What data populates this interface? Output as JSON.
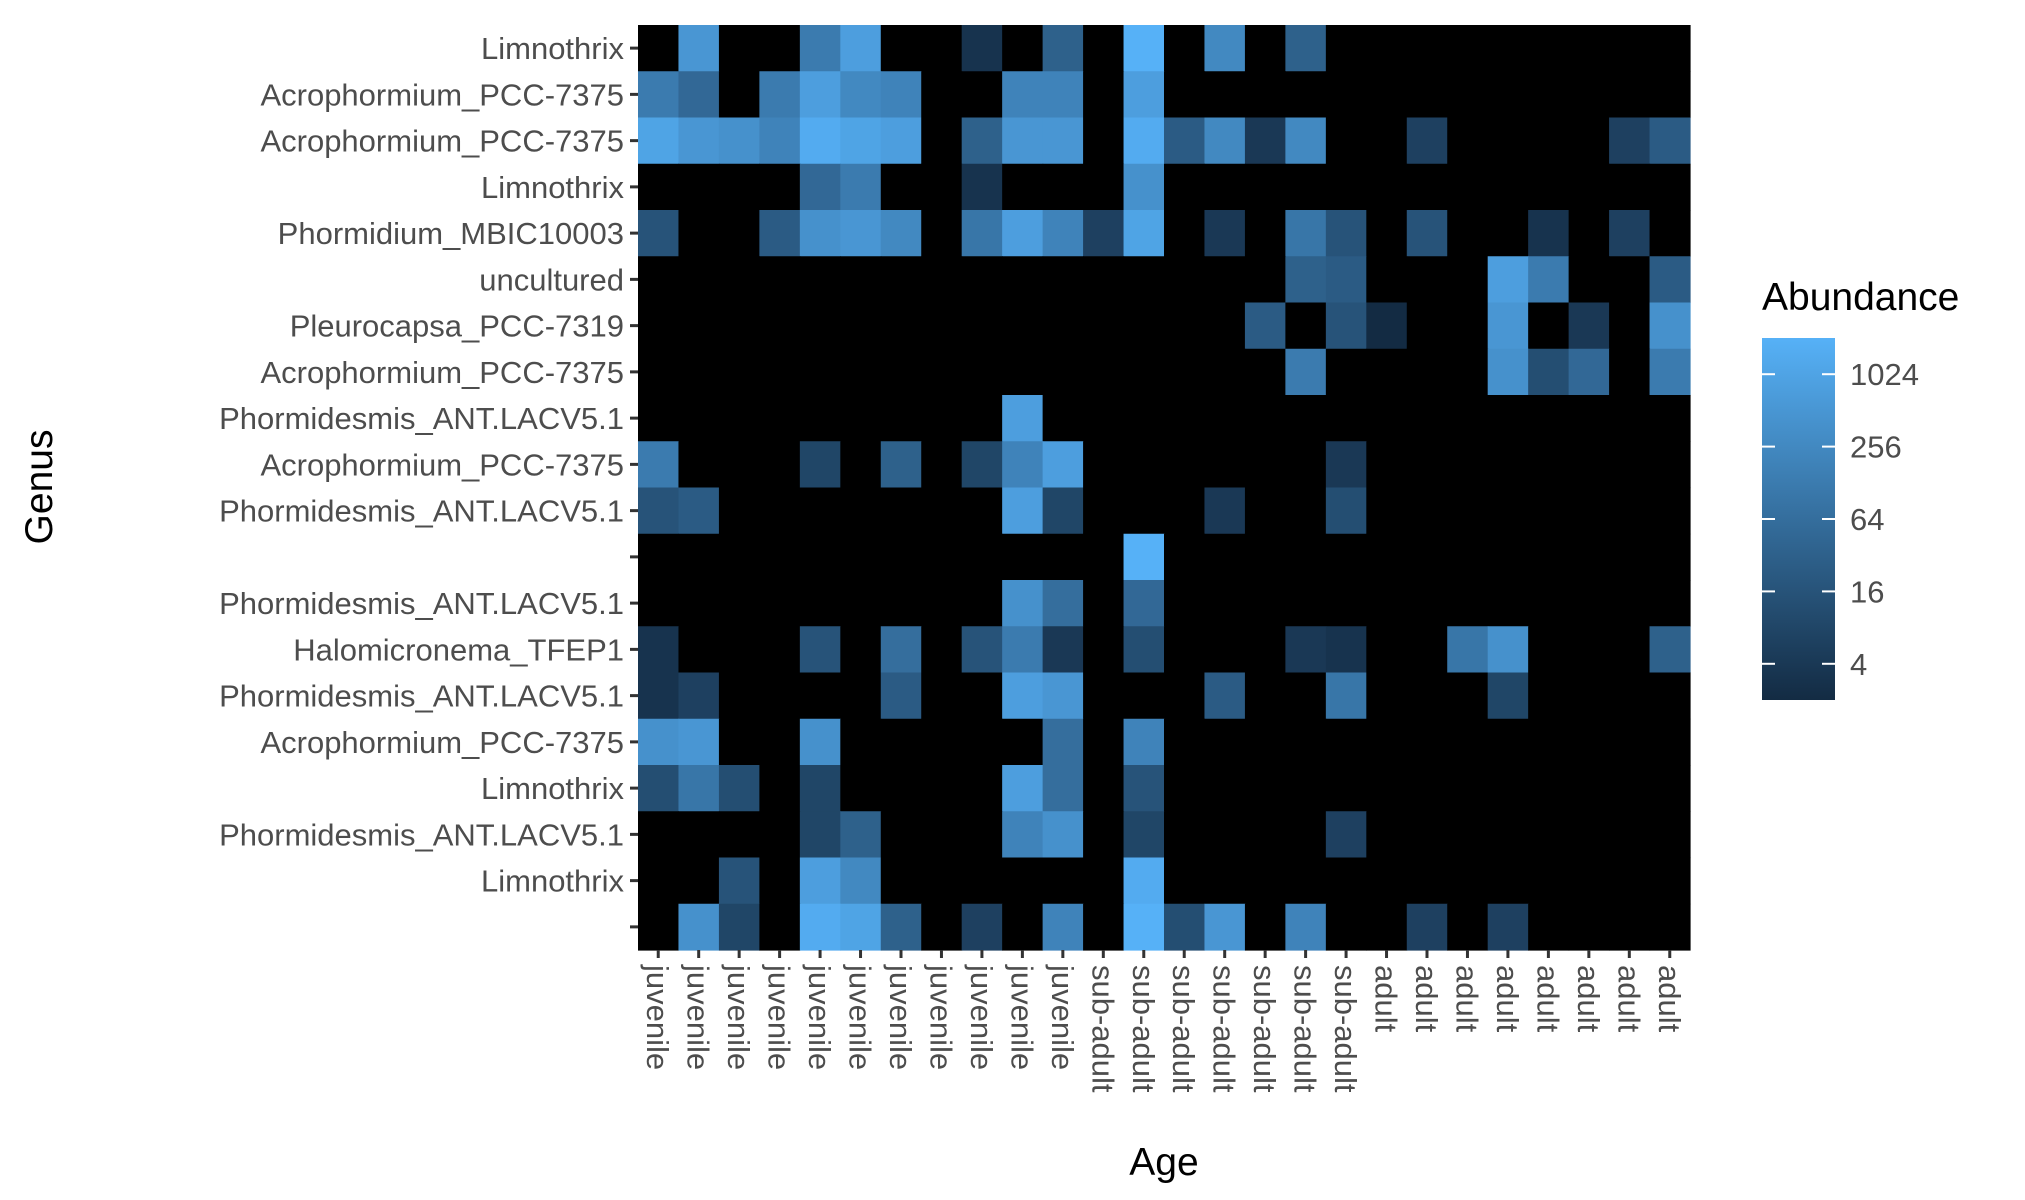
{
  "chart_data": {
    "type": "heatmap",
    "xlabel": "Age",
    "ylabel": "Genus",
    "legend": {
      "title": "Abundance",
      "placement": "right",
      "scale": "log2",
      "ticks": [
        4,
        16,
        64,
        256,
        1024
      ],
      "tick_labels": [
        "4",
        "16",
        "64",
        "256",
        "1024"
      ],
      "range": [
        2,
        2048
      ],
      "color_low": "#132B43",
      "color_high": "#56B1F7",
      "zero_color": "#000000"
    },
    "x_categories": [
      "juvenile",
      "juvenile",
      "juvenile",
      "juvenile",
      "juvenile",
      "juvenile",
      "juvenile",
      "juvenile",
      "juvenile",
      "juvenile",
      "juvenile",
      "sub-adult",
      "sub-adult",
      "sub-adult",
      "sub-adult",
      "sub-adult",
      "sub-adult",
      "sub-adult",
      "adult",
      "adult",
      "adult",
      "adult",
      "adult",
      "adult",
      "adult",
      "adult"
    ],
    "y_categories": [
      "Limnothrix",
      "Acrophormium_PCC-7375",
      "Acrophormium_PCC-7375",
      "Limnothrix",
      "Phormidium_MBIC10003",
      "uncultured",
      "Pleurocapsa_PCC-7319",
      "Acrophormium_PCC-7375",
      "Phormidesmis_ANT.LACV5.1",
      "Acrophormium_PCC-7375",
      "Phormidesmis_ANT.LACV5.1",
      "",
      "Phormidesmis_ANT.LACV5.1",
      "Halomicronema_TFEP1",
      "Phormidesmis_ANT.LACV5.1",
      "Acrophormium_PCC-7375",
      "Limnothrix",
      "Phormidesmis_ANT.LACV5.1",
      "Limnothrix",
      ""
    ],
    "values": [
      [
        0,
        512,
        0,
        0,
        128,
        768,
        0,
        0,
        3,
        0,
        32,
        0,
        2048,
        0,
        256,
        0,
        32,
        0,
        0,
        0,
        0,
        0,
        0,
        0,
        0,
        0
      ],
      [
        128,
        48,
        0,
        128,
        768,
        256,
        192,
        0,
        0,
        192,
        192,
        0,
        768,
        0,
        0,
        0,
        0,
        0,
        0,
        0,
        0,
        0,
        0,
        0,
        0,
        0
      ],
      [
        1024,
        512,
        384,
        192,
        1536,
        1024,
        768,
        0,
        32,
        512,
        512,
        0,
        1536,
        24,
        256,
        4,
        256,
        0,
        0,
        6,
        0,
        0,
        0,
        0,
        6,
        24
      ],
      [
        0,
        0,
        0,
        0,
        48,
        128,
        0,
        0,
        3,
        0,
        0,
        0,
        384,
        0,
        0,
        0,
        0,
        0,
        0,
        0,
        0,
        0,
        0,
        0,
        0,
        0
      ],
      [
        16,
        0,
        0,
        24,
        384,
        512,
        256,
        0,
        96,
        768,
        192,
        6,
        1024,
        0,
        4,
        0,
        96,
        16,
        0,
        16,
        0,
        0,
        3,
        0,
        6,
        0
      ],
      [
        0,
        0,
        0,
        0,
        0,
        0,
        0,
        0,
        0,
        0,
        0,
        0,
        0,
        0,
        0,
        0,
        32,
        24,
        0,
        0,
        0,
        768,
        128,
        0,
        0,
        24
      ],
      [
        0,
        0,
        0,
        0,
        0,
        0,
        0,
        0,
        0,
        0,
        0,
        0,
        0,
        0,
        0,
        24,
        0,
        16,
        2,
        0,
        0,
        512,
        0,
        4,
        0,
        384
      ],
      [
        0,
        0,
        0,
        0,
        0,
        0,
        0,
        0,
        0,
        0,
        0,
        0,
        0,
        0,
        0,
        0,
        128,
        0,
        0,
        0,
        0,
        384,
        12,
        48,
        0,
        128
      ],
      [
        0,
        0,
        0,
        0,
        0,
        0,
        0,
        0,
        0,
        768,
        0,
        0,
        0,
        0,
        0,
        0,
        0,
        0,
        0,
        0,
        0,
        0,
        0,
        0,
        0,
        0
      ],
      [
        128,
        0,
        0,
        0,
        8,
        0,
        32,
        0,
        8,
        192,
        768,
        0,
        0,
        0,
        0,
        0,
        0,
        4,
        0,
        0,
        0,
        0,
        0,
        0,
        0,
        0
      ],
      [
        16,
        24,
        0,
        0,
        0,
        0,
        0,
        0,
        0,
        768,
        8,
        0,
        0,
        0,
        4,
        0,
        0,
        12,
        0,
        0,
        0,
        0,
        0,
        0,
        0,
        0
      ],
      [
        0,
        0,
        0,
        0,
        0,
        0,
        0,
        0,
        0,
        0,
        0,
        0,
        2048,
        0,
        0,
        0,
        0,
        0,
        0,
        0,
        0,
        0,
        0,
        0,
        0,
        0
      ],
      [
        0,
        0,
        0,
        0,
        0,
        0,
        0,
        0,
        0,
        384,
        64,
        0,
        48,
        0,
        0,
        0,
        0,
        0,
        0,
        0,
        0,
        0,
        0,
        0,
        0,
        0
      ],
      [
        3,
        0,
        0,
        0,
        16,
        0,
        64,
        0,
        16,
        128,
        4,
        0,
        12,
        0,
        0,
        0,
        4,
        3,
        0,
        0,
        96,
        384,
        0,
        0,
        0,
        32
      ],
      [
        3,
        6,
        0,
        0,
        0,
        0,
        24,
        0,
        0,
        768,
        512,
        0,
        0,
        0,
        24,
        0,
        0,
        96,
        0,
        0,
        0,
        8,
        0,
        0,
        0,
        0
      ],
      [
        384,
        512,
        0,
        0,
        384,
        0,
        0,
        0,
        0,
        0,
        64,
        0,
        192,
        0,
        0,
        0,
        0,
        0,
        0,
        0,
        0,
        0,
        0,
        0,
        0,
        0
      ],
      [
        12,
        96,
        12,
        0,
        8,
        0,
        0,
        0,
        0,
        768,
        64,
        0,
        16,
        0,
        0,
        0,
        0,
        0,
        0,
        0,
        0,
        0,
        0,
        0,
        0,
        0
      ],
      [
        0,
        0,
        0,
        0,
        8,
        32,
        0,
        0,
        0,
        192,
        384,
        0,
        8,
        0,
        0,
        0,
        0,
        6,
        0,
        0,
        0,
        0,
        0,
        0,
        0,
        0
      ],
      [
        0,
        0,
        16,
        0,
        768,
        256,
        0,
        0,
        0,
        0,
        0,
        0,
        1536,
        0,
        0,
        0,
        0,
        0,
        0,
        0,
        0,
        0,
        0,
        0,
        0,
        0
      ],
      [
        0,
        384,
        8,
        0,
        1536,
        1024,
        32,
        0,
        6,
        0,
        192,
        0,
        2048,
        12,
        512,
        0,
        192,
        0,
        0,
        6,
        0,
        6,
        0,
        0,
        0,
        0
      ]
    ]
  }
}
